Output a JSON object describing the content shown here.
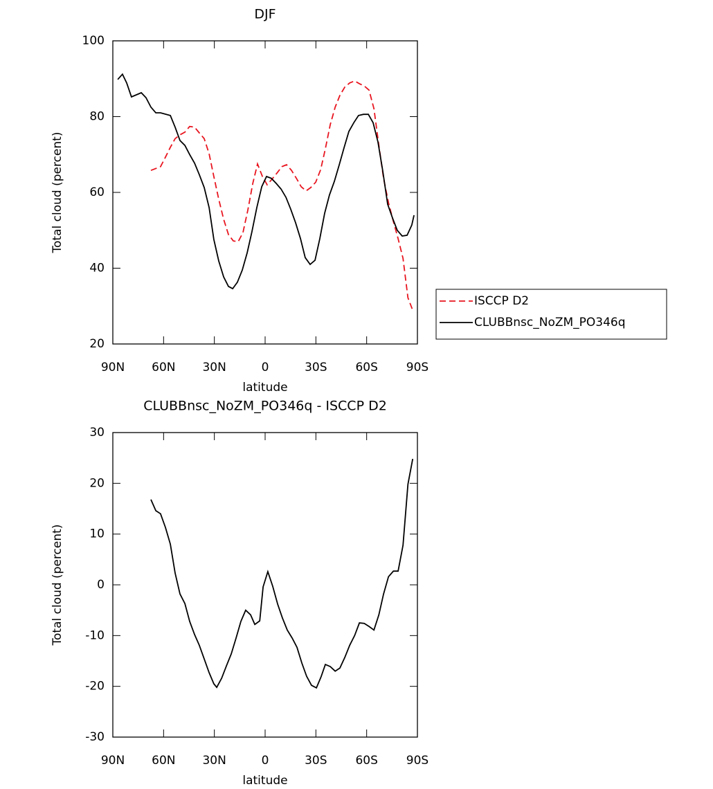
{
  "chart_data": [
    {
      "type": "line",
      "title": "DJF",
      "xlabel": "latitude",
      "ylabel": "Total cloud (percent)",
      "xlim": [
        90,
        -90
      ],
      "xticks": [
        {
          "value": 90,
          "label": "90N"
        },
        {
          "value": 60,
          "label": "60N"
        },
        {
          "value": 30,
          "label": "30N"
        },
        0,
        {
          "value": -30,
          "label": "30S"
        },
        {
          "value": -60,
          "label": "60S"
        },
        {
          "value": -90,
          "label": "90S"
        }
      ],
      "ylim": [
        20,
        100
      ],
      "yticks": [
        20,
        40,
        60,
        80,
        100
      ],
      "legend": "right",
      "series": [
        {
          "name": "ISCCP D2",
          "color": "#e8141e",
          "dash": true,
          "x": [
            67.5,
            61.8,
            58.9,
            56.0,
            53.2,
            50.3,
            47.4,
            44.6,
            41.7,
            38.9,
            36.0,
            33.1,
            30.3,
            27.4,
            24.5,
            21.7,
            18.8,
            15.9,
            13.1,
            10.2,
            7.3,
            4.5,
            1.6,
            -1.2,
            -4.1,
            -7.0,
            -9.9,
            -12.7,
            -15.6,
            -18.5,
            -21.3,
            -24.2,
            -27.0,
            -29.9,
            -32.8,
            -35.6,
            -38.5,
            -41.4,
            -44.2,
            -47.1,
            -50.0,
            -52.9,
            -55.7,
            -58.6,
            -61.4,
            -64.3,
            -67.2,
            -70.0,
            -72.9,
            -75.8,
            -78.6,
            -81.5,
            -84.4,
            -87.2
          ],
          "values": [
            65.8,
            66.8,
            69.3,
            71.9,
            74.2,
            75.2,
            75.9,
            77.4,
            77.2,
            75.7,
            74.2,
            70.2,
            64.2,
            58.2,
            52.9,
            48.9,
            47.2,
            47.0,
            49.4,
            55.4,
            62.4,
            67.5,
            64.2,
            62.0,
            63.5,
            65.1,
            66.8,
            67.3,
            65.8,
            63.7,
            61.5,
            60.4,
            61.3,
            62.7,
            66.0,
            71.5,
            77.9,
            82.5,
            85.6,
            87.8,
            88.9,
            89.4,
            88.7,
            88.1,
            87.0,
            82.1,
            72.4,
            63.7,
            57.3,
            52.3,
            47.8,
            42.6,
            32.2,
            28.9
          ]
        },
        {
          "name": "CLUBBnsc_NoZM_PO346q",
          "color": "#000000",
          "dash": false,
          "x": [
            87.1,
            84.3,
            81.8,
            79.0,
            73.2,
            70.4,
            67.5,
            64.6,
            61.8,
            56.0,
            53.2,
            50.3,
            47.4,
            44.6,
            41.7,
            38.9,
            36.0,
            33.1,
            30.3,
            27.4,
            24.5,
            21.7,
            19.2,
            16.4,
            13.5,
            10.6,
            7.8,
            4.9,
            2.0,
            -0.8,
            -3.7,
            -6.5,
            -9.4,
            -12.3,
            -15.1,
            -18.0,
            -20.9,
            -23.7,
            -26.6,
            -29.5,
            -32.3,
            -35.2,
            -38.0,
            -40.9,
            -43.8,
            -46.6,
            -49.5,
            -52.4,
            -55.2,
            -58.1,
            -61.0,
            -63.8,
            -66.7,
            -69.5,
            -72.4,
            -75.3,
            -78.1,
            -81.0,
            -83.9,
            -86.7,
            -88.0
          ],
          "values": [
            89.8,
            91.2,
            88.9,
            85.2,
            86.3,
            85.0,
            82.5,
            81.0,
            81.0,
            80.3,
            77.2,
            73.7,
            72.4,
            70.0,
            67.7,
            64.7,
            61.3,
            56.0,
            47.6,
            41.9,
            37.7,
            35.2,
            34.6,
            36.3,
            39.5,
            44.1,
            49.6,
            56.0,
            61.5,
            64.2,
            63.7,
            62.4,
            60.9,
            58.7,
            55.6,
            52.0,
            47.8,
            42.8,
            41.0,
            42.1,
            47.8,
            54.5,
            59.3,
            62.9,
            67.3,
            71.7,
            76.1,
            78.4,
            80.3,
            80.6,
            80.6,
            78.4,
            73.3,
            65.7,
            56.9,
            53.2,
            50.0,
            48.5,
            48.7,
            51.4,
            54.0
          ]
        }
      ]
    },
    {
      "type": "line",
      "title": "CLUBBnsc_NoZM_PO346q - ISCCP D2",
      "xlabel": "latitude",
      "ylabel": "Total cloud (percent)",
      "xlim": [
        90,
        -90
      ],
      "xticks": [
        {
          "value": 90,
          "label": "90N"
        },
        {
          "value": 60,
          "label": "60N"
        },
        {
          "value": 30,
          "label": "30N"
        },
        0,
        {
          "value": -30,
          "label": "30S"
        },
        {
          "value": -60,
          "label": "60S"
        },
        {
          "value": -90,
          "label": "90S"
        }
      ],
      "ylim": [
        -30,
        30
      ],
      "yticks": [
        -30,
        -20,
        -10,
        0,
        10,
        20,
        30
      ],
      "series": [
        {
          "color": "#000000",
          "dash": false,
          "x": [
            67.5,
            64.6,
            61.8,
            58.9,
            56.0,
            53.2,
            50.3,
            47.4,
            44.6,
            41.7,
            38.9,
            36.0,
            33.1,
            30.3,
            28.6,
            25.7,
            22.9,
            20.0,
            17.2,
            14.3,
            11.5,
            8.6,
            6.1,
            3.2,
            1.2,
            -1.6,
            -4.5,
            -7.4,
            -10.2,
            -13.1,
            -16.0,
            -18.8,
            -21.7,
            -24.5,
            -27.4,
            -30.3,
            -33.1,
            -35.6,
            -38.5,
            -41.4,
            -44.2,
            -47.1,
            -50.0,
            -52.9,
            -55.7,
            -58.6,
            -61.4,
            -64.3,
            -67.2,
            -70.0,
            -72.9,
            -75.8,
            -78.6,
            -81.5,
            -84.4,
            -87.2
          ],
          "values": [
            16.8,
            14.6,
            14.0,
            11.3,
            8.0,
            2.3,
            -1.8,
            -3.7,
            -7.2,
            -9.8,
            -11.9,
            -14.6,
            -17.3,
            -19.5,
            -20.2,
            -18.4,
            -16.0,
            -13.6,
            -10.5,
            -7.2,
            -5.0,
            -5.9,
            -7.8,
            -7.1,
            -0.4,
            2.6,
            -0.3,
            -3.8,
            -6.5,
            -8.9,
            -10.5,
            -12.3,
            -15.4,
            -18.0,
            -19.8,
            -20.3,
            -18.1,
            -15.7,
            -16.1,
            -17.0,
            -16.4,
            -14.3,
            -11.9,
            -10.0,
            -7.5,
            -7.6,
            -8.2,
            -8.9,
            -5.9,
            -1.8,
            1.6,
            2.7,
            2.7,
            7.8,
            19.8,
            24.8
          ]
        }
      ]
    }
  ]
}
